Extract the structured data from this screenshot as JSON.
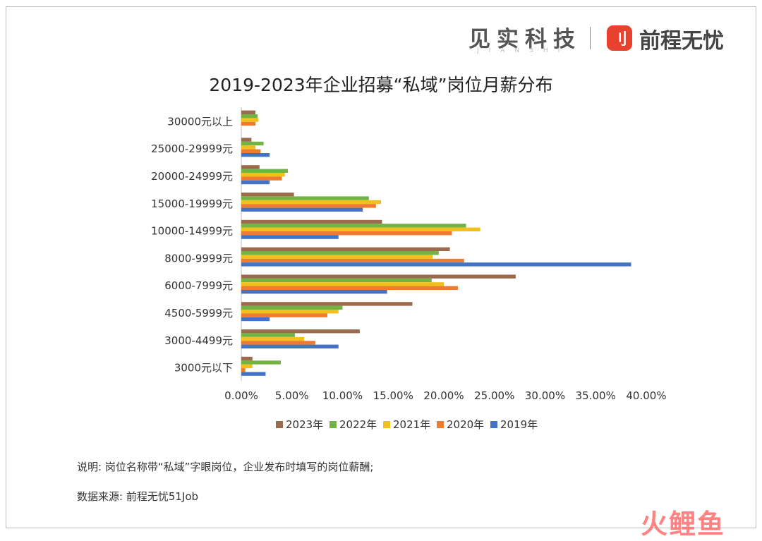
{
  "brand": {
    "left_name": "见实科技",
    "left_sub": "JIANSHI",
    "right_name": "前程无忧",
    "right_logo_glyph": "刂",
    "logo_color": "#e8412f"
  },
  "watermark": "火鲤鱼",
  "notes": {
    "description": "说明: 岗位名称带“私域”字眼岗位，企业发布时填写的岗位薪酬;",
    "source": "数据来源: 前程无忧51Job"
  },
  "chart_data": {
    "type": "bar",
    "orientation": "horizontal",
    "title": "2019-2023年企业招募“私域”岗位月薪分布",
    "categories": [
      "30000元以上",
      "25000-29999元",
      "20000-24999元",
      "15000-19999元",
      "10000-14999元",
      "8000-9999元",
      "6000-7999元",
      "4500-5999元",
      "3000-4499元",
      "3000元以下"
    ],
    "series": [
      {
        "name": "2023年",
        "color": "#9c6b4e",
        "values": [
          1.4,
          1.0,
          1.8,
          5.2,
          13.9,
          20.6,
          27.1,
          16.9,
          11.7,
          1.1
        ]
      },
      {
        "name": "2022年",
        "color": "#72b443",
        "values": [
          1.6,
          2.2,
          4.6,
          12.6,
          22.2,
          19.5,
          18.8,
          10.0,
          5.3,
          3.9
        ]
      },
      {
        "name": "2021年",
        "color": "#f2c01c",
        "values": [
          1.7,
          1.4,
          4.3,
          13.8,
          23.6,
          18.9,
          20.0,
          9.6,
          6.2,
          1.1
        ]
      },
      {
        "name": "2020年",
        "color": "#ee7b2f",
        "values": [
          1.4,
          1.9,
          4.0,
          13.3,
          20.8,
          22.0,
          21.4,
          8.5,
          7.3,
          0.4
        ]
      },
      {
        "name": "2019年",
        "color": "#4472c4",
        "values": [
          0.0,
          2.8,
          2.8,
          12.0,
          9.6,
          38.5,
          14.4,
          2.8,
          9.6,
          2.4
        ]
      }
    ],
    "xlim": [
      0,
      40
    ],
    "xticks": [
      "0.00%",
      "5.00%",
      "10.00%",
      "15.00%",
      "20.00%",
      "25.00%",
      "30.00%",
      "35.00%",
      "40.00%"
    ],
    "grid": false,
    "legend_position": "bottom"
  }
}
